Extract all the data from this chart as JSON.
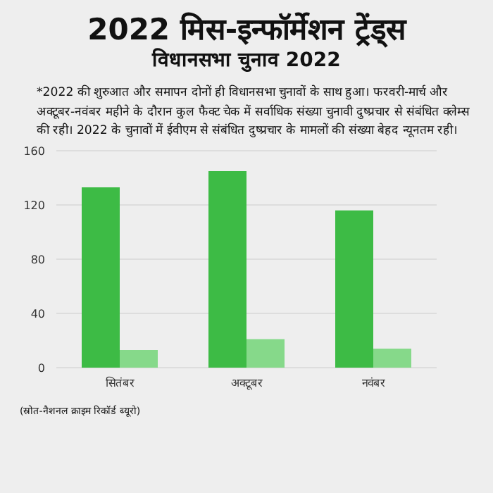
{
  "chart_data": {
    "type": "bar",
    "title": "2022 मिस-इन्फॉर्मेशन ट्रेंड्स",
    "subtitle": "विधानसभा चुनाव 2022",
    "annotations": [
      "*2022 की शुरुआत और समापन दोनों ही विधानसभा चुनावों के साथ हुआ। फरवरी-मार्च और अक्टूबर-नवंबर महीने के दौरान कुल फैक्ट चेक में सर्वाधिक संख्या चुनावी दुष्प्रचार से संबंधित क्लेम्स की रही। 2022 के चुनावों में ईवीएम से संबंधित दुष्प्रचार के मामलों की संख्या बेहद न्यूनतम रही।",
      "(स्रोत-नैशनल क्राइम रिकॉर्ड ब्यूरो)"
    ],
    "categories": [
      "सितंबर",
      "अक्टूबर",
      "नवंबर"
    ],
    "series": [
      {
        "color": "#3dbb45",
        "values": [
          133,
          145,
          116
        ]
      },
      {
        "color": "#86d98a",
        "values": [
          13,
          21,
          14
        ]
      }
    ],
    "ylim": [
      0,
      160
    ],
    "yticks": [
      0,
      40,
      80,
      120,
      160
    ],
    "grid": "y",
    "legend": false
  }
}
